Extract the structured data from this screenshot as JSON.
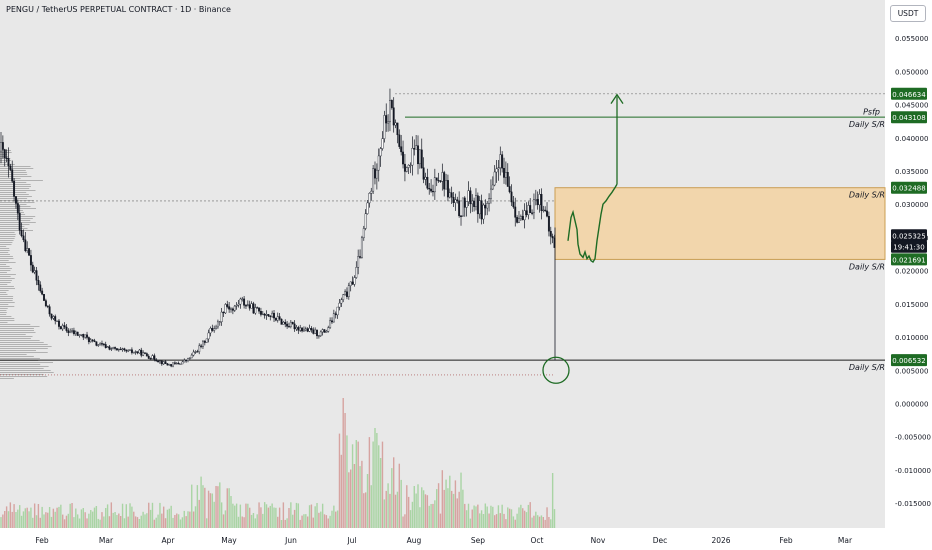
{
  "header": {
    "title": "PENGU / TetherUS PERPETUAL CONTRACT · 1D · Binance",
    "currency": "USDT"
  },
  "colors": {
    "background": "#e8e8e8",
    "up": "#ffffff",
    "down": "#131722",
    "zone_fill": "#f3d6a9",
    "zone_stroke": "#c99a4a",
    "level_green": "#1e6b24",
    "vol_up": "#a9d4a4",
    "vol_down": "#d6a3a0",
    "profile": "#9a9a9a"
  },
  "price_axis": {
    "ticks": [
      "0.055000",
      "0.050000",
      "0.045000",
      "0.040000",
      "0.035000",
      "0.030000",
      "0.025000",
      "0.020000",
      "0.015000",
      "0.010000",
      "0.005000",
      "0.000000",
      "-0.005000",
      "-0.010000",
      "-0.015000"
    ],
    "labels": [
      {
        "text": "0.046634",
        "value": 0.046634,
        "style": "green"
      },
      {
        "text": "0.043108",
        "value": 0.043108,
        "style": "green"
      },
      {
        "text": "0.032488",
        "value": 0.032488,
        "style": "green"
      },
      {
        "text": "0.025325",
        "value": 0.025325,
        "style": "dark"
      },
      {
        "text": "19:41:30",
        "value": 0.023605,
        "style": "dark"
      },
      {
        "text": "0.021691",
        "value": 0.021691,
        "style": "green"
      },
      {
        "text": "0.006532",
        "value": 0.006532,
        "style": "green"
      }
    ]
  },
  "time_axis": {
    "labels": [
      "Feb",
      "Mar",
      "Apr",
      "May",
      "Jun",
      "Jul",
      "Aug",
      "Sep",
      "Oct",
      "Nov",
      "Dec",
      "2026",
      "Feb",
      "Mar"
    ]
  },
  "annotations": [
    {
      "text": "Psfp",
      "value": 0.045
    },
    {
      "text": "Daily S/R",
      "value": 0.043108
    },
    {
      "text": "Daily S/R",
      "value": 0.032488
    },
    {
      "text": "Daily S/R",
      "value": 0.021691
    },
    {
      "text": "Daily S/R",
      "value": 0.006532
    }
  ],
  "chart_data": {
    "type": "candlestick",
    "symbol": "PENGU / TetherUS PERPETUAL CONTRACT",
    "interval": "1D",
    "exchange": "Binance",
    "ylim": [
      -0.018,
      0.06
    ],
    "current_price": 0.025325,
    "levels": [
      0.046634,
      0.043108,
      0.032488,
      0.021691,
      0.006532
    ],
    "zone": {
      "top": 0.032488,
      "bottom": 0.021691
    },
    "anchors": [
      [
        0,
        0.038
      ],
      [
        3,
        0.036
      ],
      [
        6,
        0.033
      ],
      [
        9,
        0.028
      ],
      [
        13,
        0.024
      ],
      [
        17,
        0.02
      ],
      [
        21,
        0.017
      ],
      [
        25,
        0.014
      ],
      [
        30,
        0.012
      ],
      [
        35,
        0.011
      ],
      [
        40,
        0.0105
      ],
      [
        45,
        0.01
      ],
      [
        50,
        0.009
      ],
      [
        57,
        0.0085
      ],
      [
        62,
        0.008
      ],
      [
        68,
        0.0078
      ],
      [
        74,
        0.0077
      ],
      [
        78,
        0.0072
      ],
      [
        82,
        0.0068
      ],
      [
        86,
        0.0062
      ],
      [
        90,
        0.0058
      ],
      [
        95,
        0.006
      ],
      [
        100,
        0.0066
      ],
      [
        104,
        0.0078
      ],
      [
        108,
        0.009
      ],
      [
        112,
        0.011
      ],
      [
        116,
        0.012
      ],
      [
        120,
        0.015
      ],
      [
        124,
        0.014
      ],
      [
        128,
        0.0155
      ],
      [
        132,
        0.0148
      ],
      [
        136,
        0.014
      ],
      [
        140,
        0.0138
      ],
      [
        146,
        0.013
      ],
      [
        152,
        0.012
      ],
      [
        158,
        0.0115
      ],
      [
        164,
        0.011
      ],
      [
        170,
        0.0105
      ],
      [
        174,
        0.011
      ],
      [
        178,
        0.013
      ],
      [
        182,
        0.0155
      ],
      [
        186,
        0.017
      ],
      [
        190,
        0.02
      ],
      [
        193,
        0.024
      ],
      [
        196,
        0.03
      ],
      [
        199,
        0.034
      ],
      [
        202,
        0.038
      ],
      [
        205,
        0.042
      ],
      [
        208,
        0.044
      ],
      [
        210,
        0.043
      ],
      [
        212,
        0.04
      ],
      [
        215,
        0.037
      ],
      [
        218,
        0.035
      ],
      [
        221,
        0.038
      ],
      [
        224,
        0.037
      ],
      [
        227,
        0.033
      ],
      [
        230,
        0.031
      ],
      [
        233,
        0.035
      ],
      [
        236,
        0.034
      ],
      [
        239,
        0.032
      ],
      [
        242,
        0.03
      ],
      [
        245,
        0.029
      ],
      [
        248,
        0.03
      ],
      [
        251,
        0.031
      ],
      [
        254,
        0.03
      ],
      [
        257,
        0.029
      ],
      [
        260,
        0.03
      ],
      [
        263,
        0.032
      ],
      [
        266,
        0.037
      ],
      [
        269,
        0.034
      ],
      [
        272,
        0.032
      ],
      [
        275,
        0.029
      ],
      [
        278,
        0.0275
      ],
      [
        281,
        0.028
      ],
      [
        284,
        0.03
      ],
      [
        287,
        0.031
      ],
      [
        290,
        0.03
      ],
      [
        292,
        0.027
      ],
      [
        294,
        0.025
      ],
      [
        296,
        0.024
      ]
    ],
    "volume_range": [
      0,
      1
    ],
    "projection": "green path from ~0.0245 dipping to ~0.0215 then rising to 0.046634"
  }
}
